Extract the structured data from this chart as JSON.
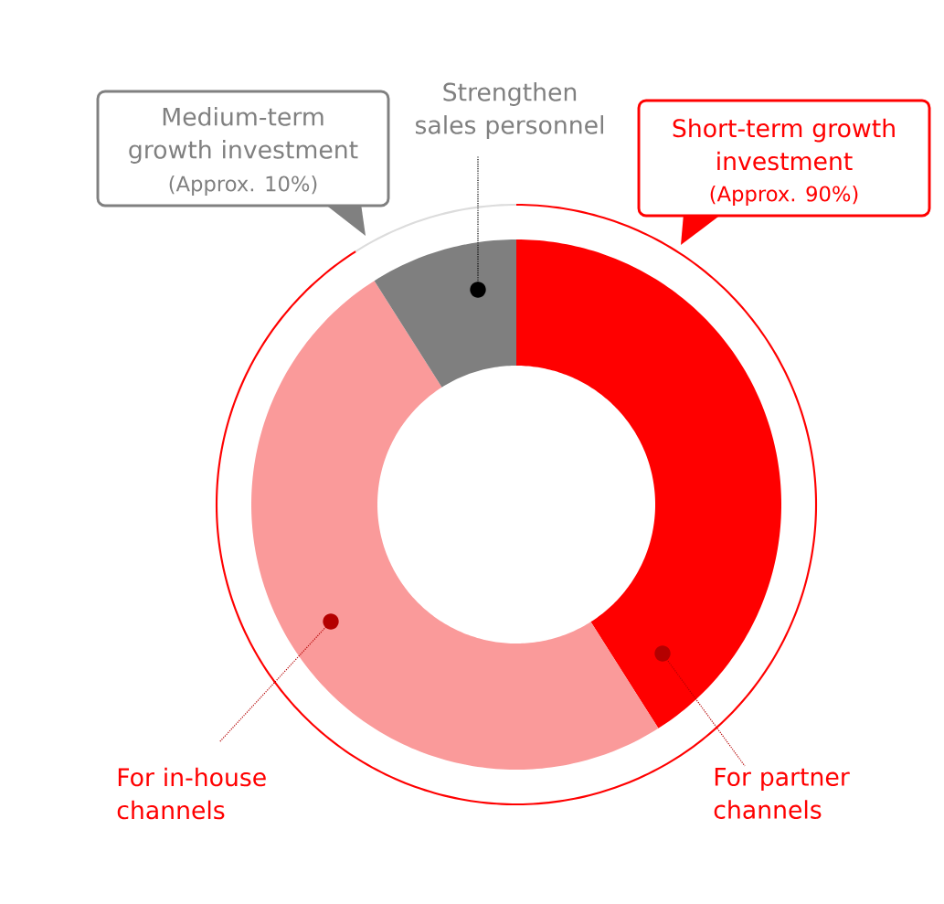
{
  "chart_data": {
    "type": "donut",
    "categories": [
      "For partner channels",
      "For in-house channels",
      "Strengthen sales personnel"
    ],
    "values": [
      41,
      50,
      9
    ],
    "colors": [
      "#ff0000",
      "#fa9a9a",
      "#7f7f7f"
    ],
    "annotations": [
      "Medium-term growth investment",
      "(Approx. 10%)",
      "Short-term growth investment",
      "(Approx. 90%)"
    ]
  }
}
